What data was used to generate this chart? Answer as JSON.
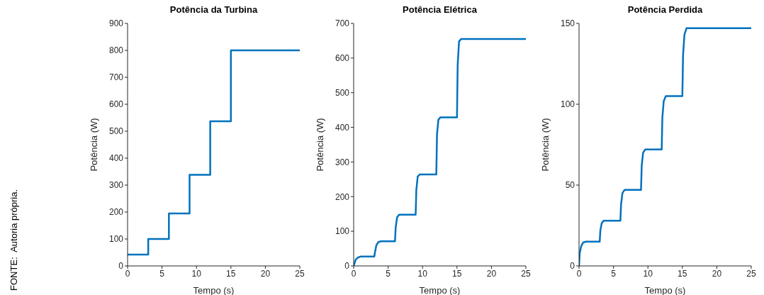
{
  "chart_data": [
    {
      "type": "line",
      "title": "Potência da Turbina",
      "xlabel": "Tempo (s)",
      "ylabel": "Potência (W)",
      "annotations": [
        "FONTE:  Autoria própria."
      ],
      "x": [
        0,
        3,
        3,
        6,
        6,
        9,
        9,
        12,
        12,
        15,
        15,
        25
      ],
      "series": [
        {
          "color": "#0072bd",
          "values": [
            42,
            42,
            100,
            100,
            195,
            195,
            338,
            338,
            537,
            537,
            800,
            800
          ]
        }
      ],
      "xlim": [
        0,
        25
      ],
      "xticks": [
        0,
        5,
        10,
        15,
        20,
        25
      ],
      "ylim": [
        0,
        900
      ],
      "yticks": [
        0,
        100,
        200,
        300,
        400,
        500,
        600,
        700,
        800,
        900
      ]
    },
    {
      "type": "line",
      "title": "Potência Elétrica",
      "xlabel": "Tempo (s)",
      "ylabel": "Potência (W)",
      "x": [
        0,
        0.3,
        0.6,
        1,
        3,
        3.1,
        3.3,
        3.6,
        4,
        6,
        6.1,
        6.3,
        6.6,
        9,
        9.1,
        9.3,
        9.6,
        12,
        12.1,
        12.3,
        12.6,
        15,
        15.1,
        15.3,
        15.6,
        25
      ],
      "series": [
        {
          "color": "#0072bd",
          "values": [
            0,
            18,
            24,
            27,
            27,
            40,
            60,
            69,
            71,
            71,
            110,
            140,
            148,
            148,
            220,
            258,
            264,
            264,
            380,
            422,
            429,
            429,
            580,
            648,
            655,
            655
          ]
        }
      ],
      "xlim": [
        0,
        25
      ],
      "xticks": [
        0,
        5,
        10,
        15,
        20,
        25
      ],
      "ylim": [
        0,
        700
      ],
      "yticks": [
        0,
        100,
        200,
        300,
        400,
        500,
        600,
        700
      ]
    },
    {
      "type": "line",
      "title": "Potência Perdida",
      "xlabel": "Tempo (s)",
      "ylabel": "Potência (W)",
      "x": [
        0,
        0.1,
        0.3,
        0.6,
        1,
        3,
        3.1,
        3.3,
        3.6,
        6,
        6.1,
        6.3,
        6.6,
        9,
        9.1,
        9.3,
        9.6,
        12,
        12.1,
        12.3,
        12.6,
        15,
        15.1,
        15.3,
        15.6,
        25
      ],
      "series": [
        {
          "color": "#0072bd",
          "values": [
            0,
            8,
            12,
            14.5,
            15,
            15,
            22,
            26.5,
            28,
            28,
            38,
            45,
            47,
            47,
            62,
            70,
            72,
            72,
            92,
            102,
            105,
            105,
            130,
            143,
            147,
            147
          ]
        }
      ],
      "xlim": [
        0,
        25
      ],
      "xticks": [
        0,
        5,
        10,
        15,
        20,
        25
      ],
      "ylim": [
        0,
        150
      ],
      "yticks": [
        0,
        50,
        100,
        150
      ]
    }
  ]
}
